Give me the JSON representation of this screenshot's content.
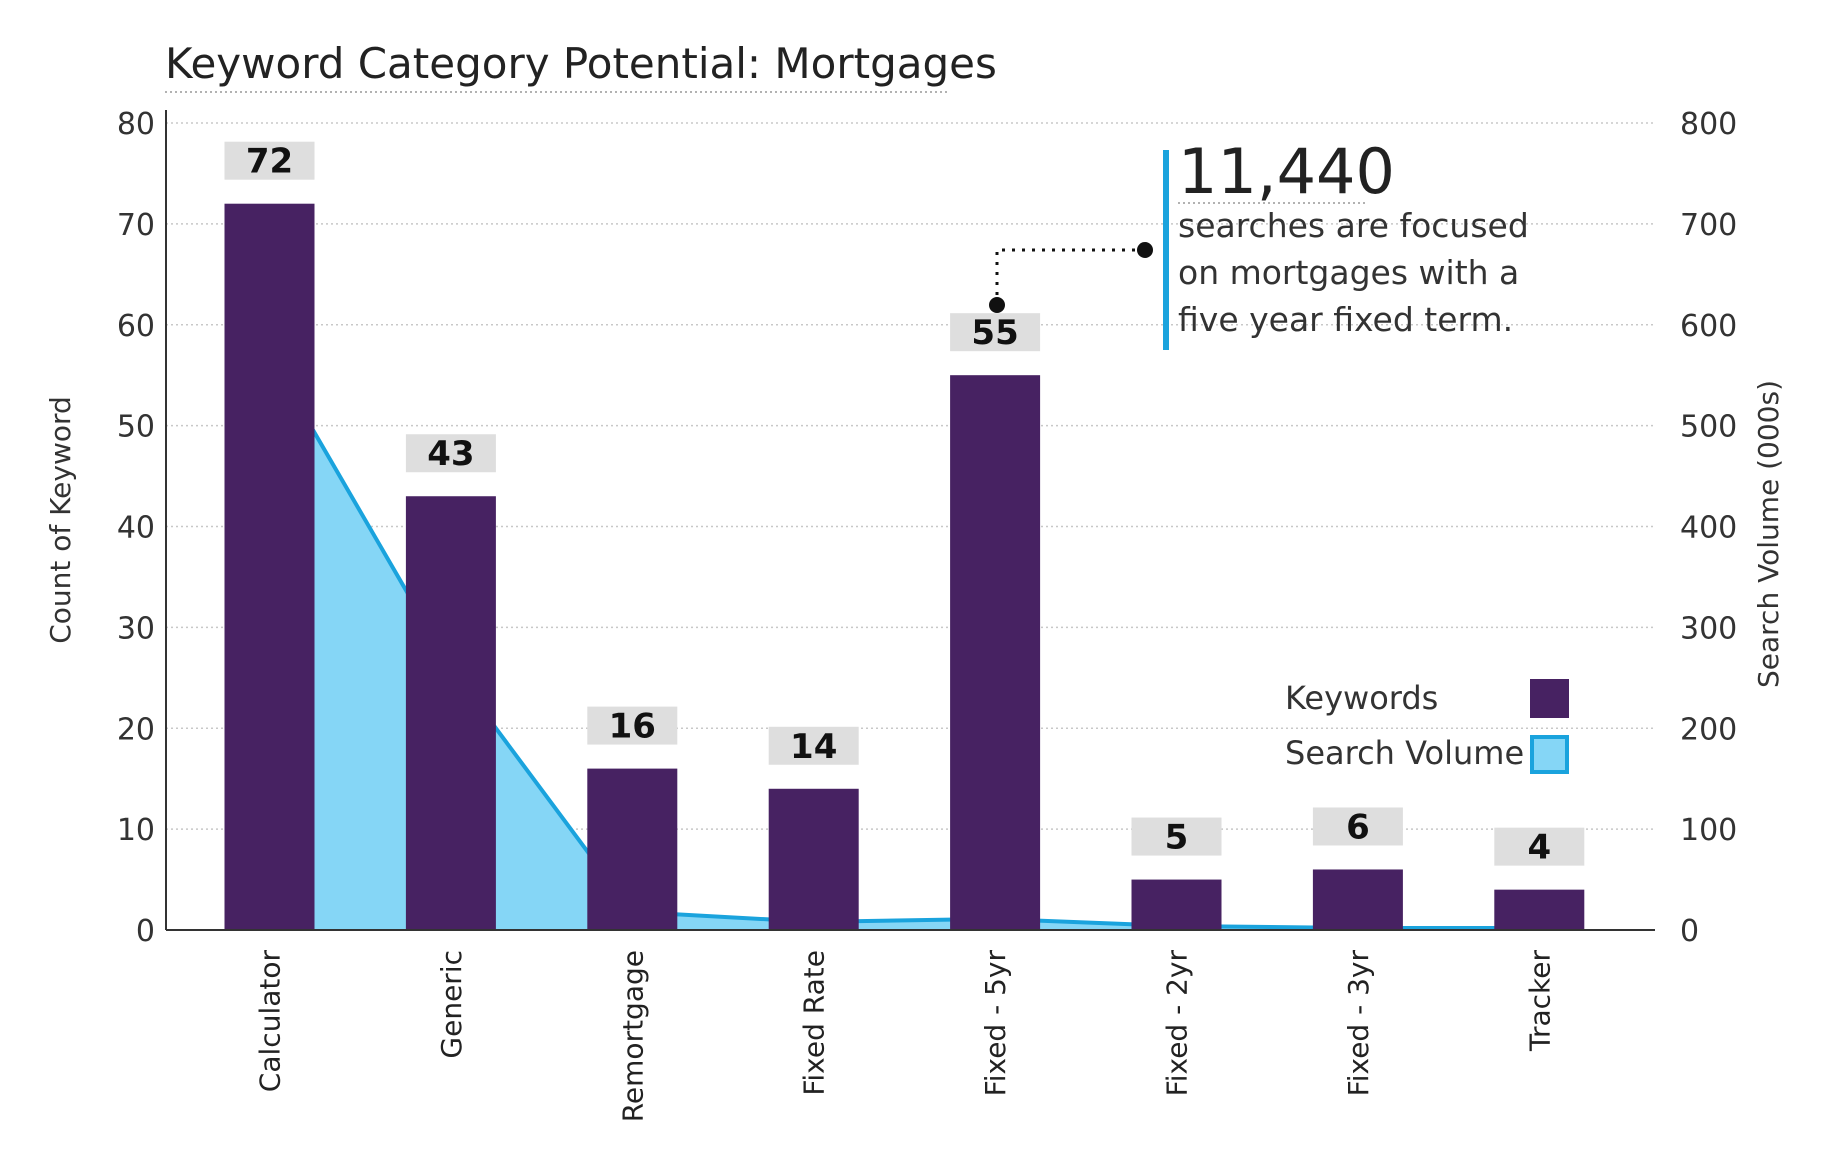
{
  "colors": {
    "bar": "#472262",
    "area_fill": "#85d6f6",
    "area_line": "#1aa3dd",
    "label_bg": "#dedede",
    "grid": "#c8c8c8",
    "annotation_bar": "#1aa3dd"
  },
  "chart_data": {
    "type": "bar",
    "title": "Keyword Category Potential: Mortgages",
    "categories": [
      "Calculator",
      "Generic",
      "Remortgage",
      "Fixed Rate",
      "Fixed - 5yr",
      "Fixed - 2yr",
      "Fixed - 3yr",
      "Tracker"
    ],
    "series": [
      {
        "name": "Keywords",
        "type": "bar",
        "axis": "left",
        "values": [
          72,
          43,
          16,
          14,
          55,
          5,
          6,
          4
        ]
      },
      {
        "name": "Search Volume",
        "type": "area",
        "axis": "right",
        "values": [
          570,
          260,
          18,
          8,
          11,
          4,
          2,
          2
        ]
      }
    ],
    "bar_labels": [
      "72",
      "43",
      "16",
      "14",
      "55",
      "5",
      "6",
      "4"
    ],
    "y_left": {
      "label": "Count of Keyword",
      "range": [
        0,
        80
      ],
      "ticks": [
        "0",
        "10",
        "20",
        "30",
        "40",
        "50",
        "60",
        "70",
        "80"
      ]
    },
    "y_right": {
      "label": "Search Volume (000s)",
      "range": [
        0,
        800
      ],
      "ticks": [
        "0",
        "100",
        "200",
        "300",
        "400",
        "500",
        "600",
        "700",
        "800"
      ]
    },
    "grid": true,
    "legend_position": "right",
    "annotation": {
      "big_number": "11,440",
      "lines": [
        "searches are focused",
        "on mortgages with a",
        "five year fixed term."
      ],
      "target_category": "Fixed - 5yr"
    }
  }
}
